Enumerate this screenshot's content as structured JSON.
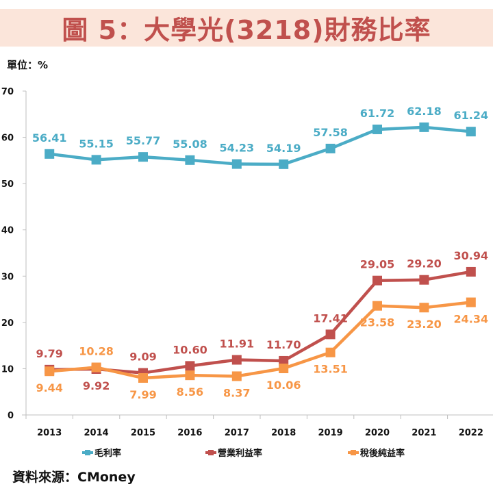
{
  "title": "圖 5：大學光(3218)財務比率",
  "unit_label": "單位：%",
  "source_label": "資料來源：CMoney",
  "chart_data": {
    "type": "line",
    "title": "圖 5：大學光(3218)財務比率",
    "xlabel": "",
    "ylabel": "單位：%",
    "ylim": [
      0,
      70
    ],
    "yticks": [
      0,
      10,
      20,
      30,
      40,
      50,
      60,
      70
    ],
    "grid": false,
    "legend_position": "bottom",
    "categories": [
      "2013",
      "2014",
      "2015",
      "2016",
      "2017",
      "2018",
      "2019",
      "2020",
      "2021",
      "2022"
    ],
    "series": [
      {
        "name": "毛利率",
        "color": "#4bacc6",
        "values": [
          56.41,
          55.15,
          55.77,
          55.08,
          54.23,
          54.19,
          57.58,
          61.72,
          62.18,
          61.24
        ],
        "labels": [
          "56.41",
          "55.15",
          "55.77",
          "55.08",
          "54.23",
          "54.19",
          "57.58",
          "61.72",
          "62.18",
          "61.24"
        ],
        "label_side": [
          "above",
          "above",
          "above",
          "above",
          "above",
          "above",
          "above",
          "above",
          "above",
          "above"
        ]
      },
      {
        "name": "營業利益率",
        "color": "#c0504d",
        "values": [
          9.79,
          9.92,
          9.09,
          10.6,
          11.91,
          11.7,
          17.41,
          29.05,
          29.2,
          30.94
        ],
        "labels": [
          "9.79",
          "9.92",
          "9.09",
          "10.60",
          "11.91",
          "11.70",
          "17.41",
          "29.05",
          "29.20",
          "30.94"
        ],
        "label_side": [
          "above",
          "below",
          "above",
          "above",
          "above",
          "above",
          "above",
          "above",
          "above",
          "above"
        ]
      },
      {
        "name": "稅後純益率",
        "color": "#f79646",
        "values": [
          9.44,
          10.28,
          7.99,
          8.56,
          8.37,
          10.06,
          13.51,
          23.58,
          23.2,
          24.34
        ],
        "labels": [
          "9.44",
          "10.28",
          "7.99",
          "8.56",
          "8.37",
          "10.06",
          "13.51",
          "23.58",
          "23.20",
          "24.34"
        ],
        "label_side": [
          "below",
          "above",
          "below",
          "below",
          "below",
          "below",
          "below",
          "below",
          "below",
          "below"
        ]
      }
    ]
  }
}
